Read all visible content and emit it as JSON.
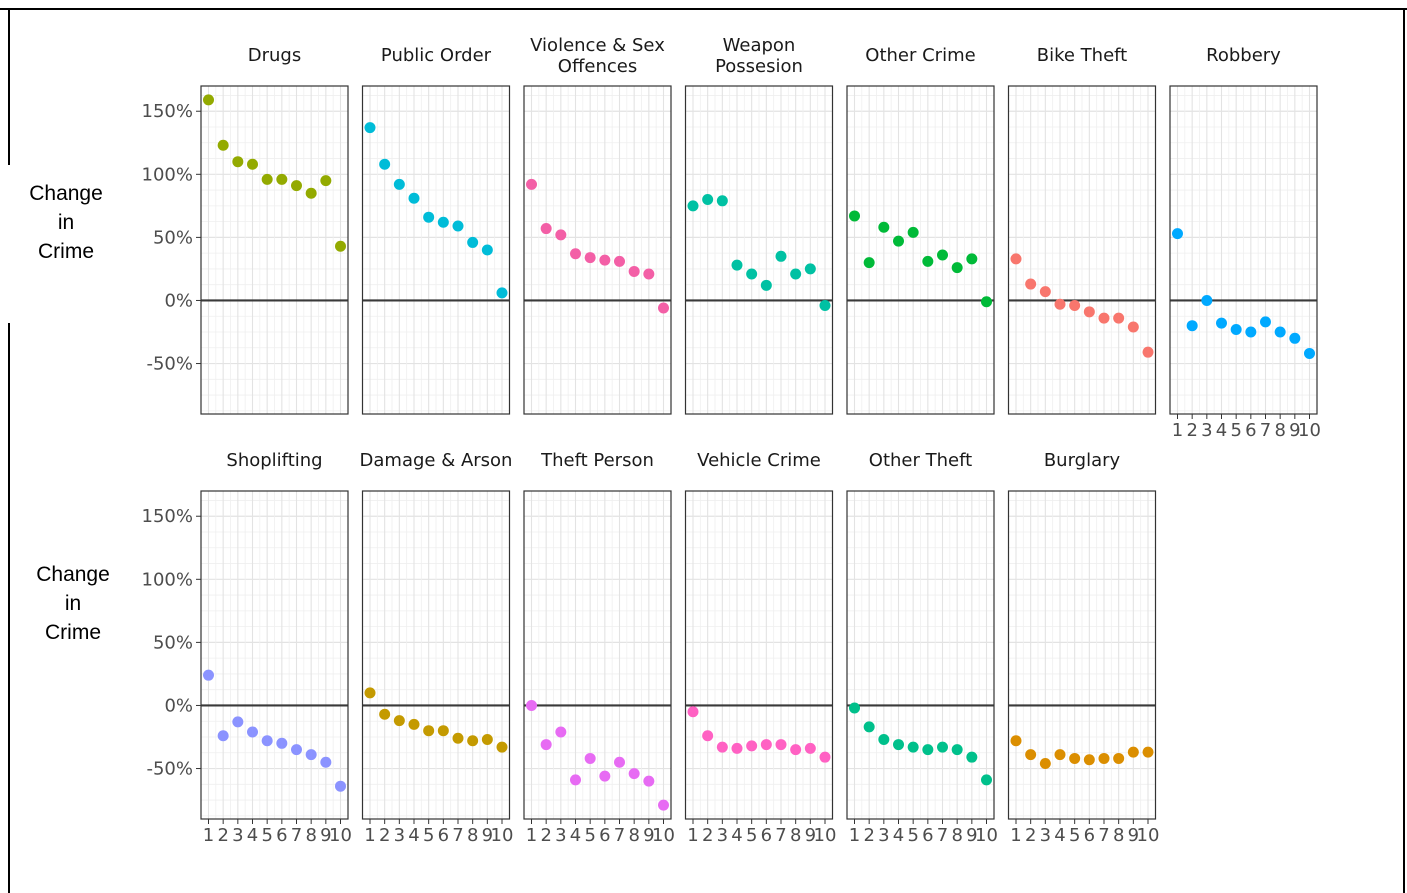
{
  "chart_data": {
    "type": "scatter",
    "ylabel": "Change in Crime",
    "y_ticks": [
      "150%",
      "100%",
      "50%",
      "0%",
      "-50%"
    ],
    "y_tick_values": [
      150,
      100,
      50,
      0,
      -50
    ],
    "ylim": [
      -90,
      170
    ],
    "x": [
      1,
      2,
      3,
      4,
      5,
      6,
      7,
      8,
      9,
      10
    ],
    "x_tick_labels": [
      "1",
      "2",
      "3",
      "4",
      "5",
      "6",
      "7",
      "8",
      "9",
      "10"
    ],
    "reference_line": 0,
    "grid": true,
    "panels": [
      {
        "title": "Drugs",
        "color": "#93AA00",
        "values": [
          159,
          123,
          110,
          108,
          96,
          96,
          91,
          85,
          95,
          43
        ]
      },
      {
        "title": "Public Order",
        "color": "#00BCD8",
        "values": [
          137,
          108,
          92,
          81,
          66,
          62,
          59,
          46,
          40,
          6
        ]
      },
      {
        "title": "Violence & Sex Offences",
        "color": "#F8766D",
        "values": [
          92,
          57,
          52,
          37,
          34,
          32,
          31,
          23,
          21,
          -6
        ],
        "color_override": "#F35FA6"
      },
      {
        "title": "Weapon Possesion",
        "color": "#00C1A3",
        "values": [
          75,
          80,
          79,
          28,
          21,
          12,
          35,
          21,
          25,
          -4
        ]
      },
      {
        "title": "Other Crime",
        "color": "#00BA38",
        "values": [
          67,
          30,
          58,
          47,
          54,
          31,
          36,
          26,
          33,
          -1
        ]
      },
      {
        "title": "Bike Theft",
        "color": "#F8766D",
        "values": [
          33,
          13,
          7,
          -3,
          -4,
          -9,
          -14,
          -14,
          -21,
          -41
        ]
      },
      {
        "title": "Robbery",
        "color": "#00A9FF",
        "values": [
          53,
          -20,
          0,
          -18,
          -23,
          -25,
          -17,
          -25,
          -30,
          -42
        ]
      },
      {
        "title": "Shoplifting",
        "color": "#8B93FF",
        "values": [
          24,
          -24,
          -13,
          -21,
          -28,
          -30,
          -35,
          -39,
          -45,
          -64
        ]
      },
      {
        "title": "Damage & Arson",
        "color": "#C49A00",
        "values": [
          10,
          -7,
          -12,
          -15,
          -20,
          -20,
          -26,
          -28,
          -27,
          -33
        ]
      },
      {
        "title": "Theft Person",
        "color": "#E76BF3",
        "values": [
          0,
          -31,
          -21,
          -59,
          -42,
          -56,
          -45,
          -54,
          -60,
          -79
        ]
      },
      {
        "title": "Vehicle Crime",
        "color": "#FF61C3",
        "values": [
          -5,
          -24,
          -33,
          -34,
          -32,
          -31,
          -31,
          -35,
          -34,
          -41
        ]
      },
      {
        "title": "Other Theft",
        "color": "#00C08B",
        "values": [
          -2,
          -17,
          -27,
          -31,
          -33,
          -35,
          -33,
          -35,
          -41,
          -59
        ]
      },
      {
        "title": "Burglary",
        "color": "#DB8E00",
        "values": [
          -28,
          -39,
          -46,
          -39,
          -42,
          -43,
          -42,
          -42,
          -37,
          -37
        ]
      }
    ]
  }
}
